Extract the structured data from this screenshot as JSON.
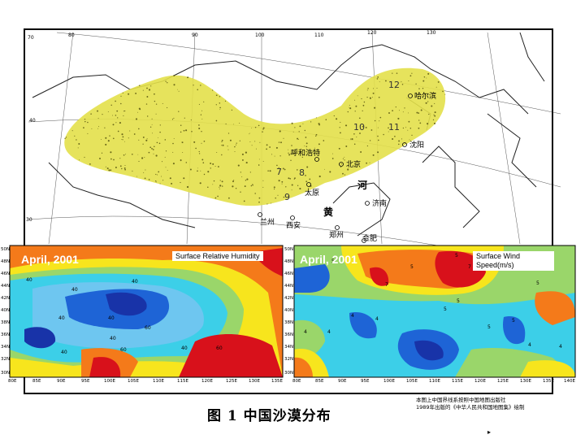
{
  "base_map": {
    "longitude_ticks": [
      "70",
      "80",
      "90",
      "100",
      "110",
      "120",
      "130"
    ],
    "latitude_ticks": [
      "40",
      "30"
    ],
    "cities": [
      {
        "name": "哈尔滨"
      },
      {
        "name": "沈阳"
      },
      {
        "name": "北京"
      },
      {
        "name": "呼和浩特"
      },
      {
        "name": "太原"
      },
      {
        "name": "济南"
      },
      {
        "name": "西安"
      },
      {
        "name": "郑州"
      },
      {
        "name": "兰州"
      },
      {
        "name": "合肥"
      }
    ],
    "rivers": [
      {
        "name": "黄"
      },
      {
        "name": "河"
      }
    ],
    "desert_numbers": [
      "12",
      "11",
      "10",
      "9",
      "8",
      "7"
    ],
    "desert_belt_color": "#e3e04a"
  },
  "panel_left": {
    "date": "April, 2001",
    "legend": "Surface Relative Humidity",
    "lat_ticks": [
      "50N",
      "48N",
      "46N",
      "44N",
      "42N",
      "40N",
      "38N",
      "36N",
      "34N",
      "32N",
      "30N"
    ],
    "lon_ticks": [
      "80E",
      "85E",
      "90E",
      "95E",
      "100E",
      "105E",
      "110E",
      "115E",
      "120E",
      "125E",
      "130E",
      "135E"
    ],
    "contour_labels": [
      "40",
      "40",
      "40",
      "40",
      "40",
      "60",
      "40",
      "40",
      "40",
      "60",
      "60"
    ]
  },
  "panel_right": {
    "date": "April, 2001",
    "legend_line1": "Surface Wind",
    "legend_line2": "Speed(m/s)",
    "lat_ticks": [
      "50N",
      "48N",
      "46N",
      "44N",
      "42N",
      "40N",
      "38N",
      "36N",
      "34N",
      "32N",
      "30N"
    ],
    "lon_ticks": [
      "80E",
      "85E",
      "90E",
      "95E",
      "100E",
      "105E",
      "110E",
      "115E",
      "120E",
      "125E",
      "130E",
      "135E",
      "140E"
    ],
    "contour_labels": [
      "5",
      "5",
      "5",
      "7",
      "7",
      "5",
      "5",
      "5",
      "4",
      "4",
      "4",
      "4",
      "5",
      "4",
      "4",
      "5"
    ]
  },
  "caption": "图 1   中国沙漠分布",
  "source_note_line1": "本图上中国界线系按照中国地图出版社",
  "source_note_line2": "1989年出版的《中华人民共和国地图集》绘制",
  "colors": {
    "red": "#d8111b",
    "orange": "#f47a1a",
    "yellow": "#f7e51d",
    "green": "#9ad66a",
    "cyan": "#3ccfe8",
    "lightblue": "#6ec6f0",
    "blue": "#1e64d6",
    "darkblue": "#1833a8"
  }
}
